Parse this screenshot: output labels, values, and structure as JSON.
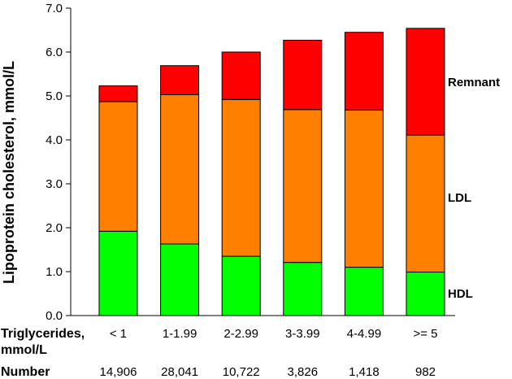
{
  "chart_data": {
    "type": "bar",
    "stacked": true,
    "ylabel": "Lipoprotein cholesterol, mmol/L",
    "ylim": [
      0,
      7
    ],
    "yticks": [
      "0.0",
      "1.0",
      "2.0",
      "3.0",
      "4.0",
      "5.0",
      "6.0",
      "7.0"
    ],
    "categories": [
      "< 1",
      "1-1.99",
      "2-2.99",
      "3-3.99",
      "4-4.99",
      ">= 5"
    ],
    "series": [
      {
        "name": "HDL",
        "color": "#00ff00",
        "values": [
          1.92,
          1.63,
          1.35,
          1.21,
          1.1,
          0.99
        ]
      },
      {
        "name": "LDL",
        "color": "#ff8000",
        "values": [
          2.95,
          3.4,
          3.57,
          3.48,
          3.58,
          3.12
        ]
      },
      {
        "name": "Remnant",
        "color": "#ff0000",
        "values": [
          0.36,
          0.66,
          1.08,
          1.58,
          1.77,
          2.43
        ]
      }
    ],
    "row_labels": {
      "triglycerides_line1": "Triglycerides,",
      "triglycerides_line2": "mmol/L",
      "number": "Number"
    },
    "numbers": [
      "14,906",
      "28,041",
      "10,722",
      "3,826",
      "1,418",
      "982"
    ]
  }
}
